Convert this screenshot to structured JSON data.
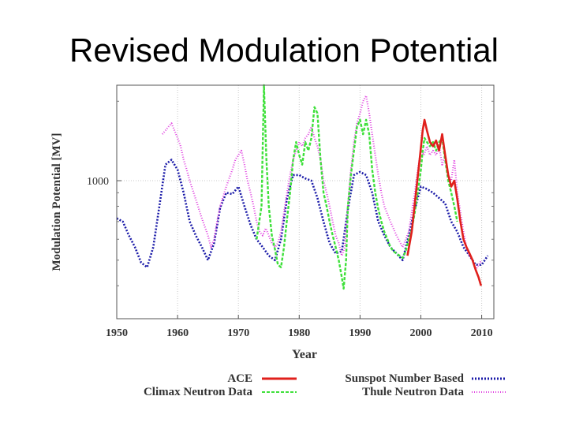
{
  "slide": {
    "title": "Revised Modulation Potential"
  },
  "chart_data": {
    "type": "line",
    "title": "",
    "xlabel": "Year",
    "ylabel": "Modulation Potential [MV]",
    "xlim": [
      1950,
      2012
    ],
    "ylim": [
      300,
      2300
    ],
    "y_scale": "log",
    "x_ticks": [
      "1950",
      "1960",
      "1970",
      "1980",
      "1990",
      "2000",
      "2010"
    ],
    "y_ticks": [
      "1000"
    ],
    "grid": true,
    "legend_position": "bottom",
    "series": [
      {
        "name": "ACE",
        "color": "#e0201c",
        "style": "solid",
        "points": [
          [
            1997.8,
            520
          ],
          [
            1998.5,
            640
          ],
          [
            1999.2,
            900
          ],
          [
            1999.8,
            1200
          ],
          [
            2000.3,
            1550
          ],
          [
            2000.6,
            1700
          ],
          [
            2001.0,
            1550
          ],
          [
            2001.5,
            1400
          ],
          [
            2002.0,
            1350
          ],
          [
            2002.5,
            1420
          ],
          [
            2003.0,
            1300
          ],
          [
            2003.5,
            1500
          ],
          [
            2004.0,
            1250
          ],
          [
            2004.5,
            1050
          ],
          [
            2005.0,
            950
          ],
          [
            2005.5,
            1000
          ],
          [
            2006.0,
            850
          ],
          [
            2006.5,
            700
          ],
          [
            2007.0,
            600
          ],
          [
            2007.5,
            560
          ],
          [
            2008.0,
            530
          ],
          [
            2008.5,
            500
          ],
          [
            2009.0,
            460
          ],
          [
            2009.5,
            430
          ],
          [
            2009.9,
            400
          ]
        ]
      },
      {
        "name": "Sunspot Number Based",
        "color": "#1a1aa8",
        "style": "dotted",
        "points": [
          [
            1950,
            720
          ],
          [
            1951,
            700
          ],
          [
            1952,
            620
          ],
          [
            1953,
            560
          ],
          [
            1954,
            490
          ],
          [
            1955,
            470
          ],
          [
            1956,
            560
          ],
          [
            1957,
            800
          ],
          [
            1958,
            1150
          ],
          [
            1959,
            1200
          ],
          [
            1960,
            1100
          ],
          [
            1961,
            900
          ],
          [
            1962,
            700
          ],
          [
            1963,
            620
          ],
          [
            1964,
            560
          ],
          [
            1965,
            500
          ],
          [
            1966,
            580
          ],
          [
            1967,
            790
          ],
          [
            1968,
            900
          ],
          [
            1969,
            890
          ],
          [
            1970,
            950
          ],
          [
            1971,
            800
          ],
          [
            1972,
            680
          ],
          [
            1973,
            600
          ],
          [
            1974,
            560
          ],
          [
            1975,
            520
          ],
          [
            1976,
            500
          ],
          [
            1977,
            600
          ],
          [
            1978,
            860
          ],
          [
            1979,
            1050
          ],
          [
            1980,
            1050
          ],
          [
            1981,
            1020
          ],
          [
            1982,
            1000
          ],
          [
            1983,
            860
          ],
          [
            1984,
            700
          ],
          [
            1985,
            580
          ],
          [
            1986,
            530
          ],
          [
            1987,
            540
          ],
          [
            1988,
            780
          ],
          [
            1989,
            1050
          ],
          [
            1990,
            1080
          ],
          [
            1991,
            1050
          ],
          [
            1992,
            900
          ],
          [
            1993,
            700
          ],
          [
            1994,
            620
          ],
          [
            1995,
            560
          ],
          [
            1996,
            530
          ],
          [
            1997,
            500
          ],
          [
            1998,
            620
          ],
          [
            1999,
            780
          ],
          [
            2000,
            950
          ],
          [
            2001,
            930
          ],
          [
            2002,
            900
          ],
          [
            2003,
            860
          ],
          [
            2004,
            820
          ],
          [
            2005,
            700
          ],
          [
            2006,
            640
          ],
          [
            2007,
            560
          ],
          [
            2008,
            520
          ],
          [
            2009,
            480
          ],
          [
            2010,
            480
          ],
          [
            2011,
            520
          ]
        ]
      },
      {
        "name": "Climax Neutron Data",
        "color": "#3ee03a",
        "style": "dashed",
        "points": [
          [
            1973,
            600
          ],
          [
            1973.8,
            800
          ],
          [
            1974.2,
            2300
          ],
          [
            1974.6,
            1200
          ],
          [
            1975,
            800
          ],
          [
            1975.5,
            620
          ],
          [
            1976,
            550
          ],
          [
            1976.5,
            480
          ],
          [
            1977,
            470
          ],
          [
            1977.5,
            560
          ],
          [
            1978,
            720
          ],
          [
            1978.5,
            900
          ],
          [
            1979,
            1200
          ],
          [
            1979.5,
            1400
          ],
          [
            1980,
            1250
          ],
          [
            1980.5,
            1150
          ],
          [
            1981,
            1400
          ],
          [
            1981.5,
            1300
          ],
          [
            1982,
            1450
          ],
          [
            1982.5,
            1900
          ],
          [
            1983,
            1800
          ],
          [
            1983.5,
            1200
          ],
          [
            1984,
            900
          ],
          [
            1984.5,
            800
          ],
          [
            1985,
            700
          ],
          [
            1985.5,
            620
          ],
          [
            1986,
            560
          ],
          [
            1986.5,
            500
          ],
          [
            1987,
            430
          ],
          [
            1987.3,
            390
          ],
          [
            1987.7,
            500
          ],
          [
            1988,
            800
          ],
          [
            1988.5,
            1050
          ],
          [
            1989,
            1300
          ],
          [
            1989.5,
            1600
          ],
          [
            1990,
            1700
          ],
          [
            1990.5,
            1500
          ],
          [
            1991,
            1700
          ],
          [
            1991.5,
            1500
          ],
          [
            1992,
            1100
          ],
          [
            1992.5,
            900
          ],
          [
            1993,
            780
          ],
          [
            1993.5,
            700
          ],
          [
            1994,
            640
          ],
          [
            1994.5,
            600
          ],
          [
            1995,
            560
          ],
          [
            1995.5,
            540
          ],
          [
            1996,
            530
          ],
          [
            1996.5,
            520
          ],
          [
            1997,
            510
          ],
          [
            1997.5,
            540
          ],
          [
            1998,
            600
          ],
          [
            1998.5,
            650
          ],
          [
            1999,
            760
          ],
          [
            1999.5,
            900
          ],
          [
            2000,
            1100
          ],
          [
            2000.3,
            1300
          ],
          [
            2000.6,
            1450
          ],
          [
            2001,
            1400
          ],
          [
            2001.5,
            1350
          ],
          [
            2002,
            1400
          ],
          [
            2002.5,
            1300
          ],
          [
            2003,
            1400
          ],
          [
            2003.5,
            1450
          ],
          [
            2004,
            1200
          ],
          [
            2004.5,
            1000
          ],
          [
            2005,
            900
          ],
          [
            2005.5,
            800
          ],
          [
            2006,
            700
          ]
        ]
      },
      {
        "name": "Thule Neutron Data",
        "color": "#e040e0",
        "style": "dash-dot",
        "points": [
          [
            1957.5,
            1500
          ],
          [
            1958,
            1550
          ],
          [
            1958.5,
            1600
          ],
          [
            1959,
            1650
          ],
          [
            1959.5,
            1550
          ],
          [
            1960,
            1450
          ],
          [
            1960.5,
            1350
          ],
          [
            1961,
            1200
          ],
          [
            1961.5,
            1100
          ],
          [
            1962,
            1000
          ],
          [
            1963,
            850
          ],
          [
            1964,
            720
          ],
          [
            1965,
            620
          ],
          [
            1965.5,
            560
          ],
          [
            1966,
            600
          ],
          [
            1966.5,
            700
          ],
          [
            1967,
            800
          ],
          [
            1968,
            950
          ],
          [
            1969,
            1100
          ],
          [
            1969.5,
            1200
          ],
          [
            1970,
            1250
          ],
          [
            1970.5,
            1300
          ],
          [
            1971,
            1150
          ],
          [
            1971.5,
            1000
          ],
          [
            1972,
            900
          ],
          [
            1972.5,
            800
          ],
          [
            1973,
            700
          ],
          [
            1973.5,
            640
          ],
          [
            1974,
            620
          ],
          [
            1974.5,
            660
          ],
          [
            1975,
            620
          ],
          [
            1975.5,
            580
          ],
          [
            1976,
            560
          ],
          [
            1976.5,
            580
          ],
          [
            1977,
            640
          ],
          [
            1977.5,
            760
          ],
          [
            1978,
            900
          ],
          [
            1978.5,
            1050
          ],
          [
            1979,
            1200
          ],
          [
            1979.5,
            1300
          ],
          [
            1980,
            1400
          ],
          [
            1980.5,
            1350
          ],
          [
            1981,
            1450
          ],
          [
            1981.5,
            1500
          ],
          [
            1982,
            1600
          ],
          [
            1982.5,
            1450
          ],
          [
            1983,
            1350
          ],
          [
            1983.5,
            1200
          ],
          [
            1984,
            1000
          ],
          [
            1984.5,
            900
          ],
          [
            1985,
            800
          ],
          [
            1985.5,
            700
          ],
          [
            1986,
            620
          ],
          [
            1986.5,
            580
          ],
          [
            1987,
            520
          ],
          [
            1987.5,
            560
          ],
          [
            1988,
            800
          ],
          [
            1988.5,
            1100
          ],
          [
            1989,
            1400
          ],
          [
            1989.5,
            1650
          ],
          [
            1990,
            1800
          ],
          [
            1990.5,
            2000
          ],
          [
            1991,
            2100
          ],
          [
            1991.5,
            1800
          ],
          [
            1992,
            1500
          ],
          [
            1992.5,
            1250
          ],
          [
            1993,
            1050
          ],
          [
            1993.5,
            900
          ],
          [
            1994,
            800
          ],
          [
            1995,
            700
          ],
          [
            1996,
            620
          ],
          [
            1997,
            560
          ],
          [
            1998,
            640
          ],
          [
            1999,
            900
          ],
          [
            1999.5,
            1100
          ],
          [
            2000,
            1300
          ],
          [
            2000.5,
            1250
          ],
          [
            2001,
            1350
          ],
          [
            2001.5,
            1250
          ],
          [
            2002,
            1300
          ],
          [
            2002.5,
            1250
          ],
          [
            2003,
            1350
          ],
          [
            2003.5,
            1150
          ],
          [
            2004,
            1250
          ],
          [
            2004.5,
            1050
          ],
          [
            2005,
            1000
          ],
          [
            2005.5,
            1200
          ],
          [
            2006,
            900
          ],
          [
            2006.5,
            760
          ],
          [
            2007,
            640
          ],
          [
            2007.5,
            560
          ],
          [
            2008,
            520
          ],
          [
            2008.5,
            500
          ],
          [
            2009,
            460
          ],
          [
            2009.5,
            480
          ],
          [
            2010,
            500
          ]
        ]
      }
    ]
  }
}
